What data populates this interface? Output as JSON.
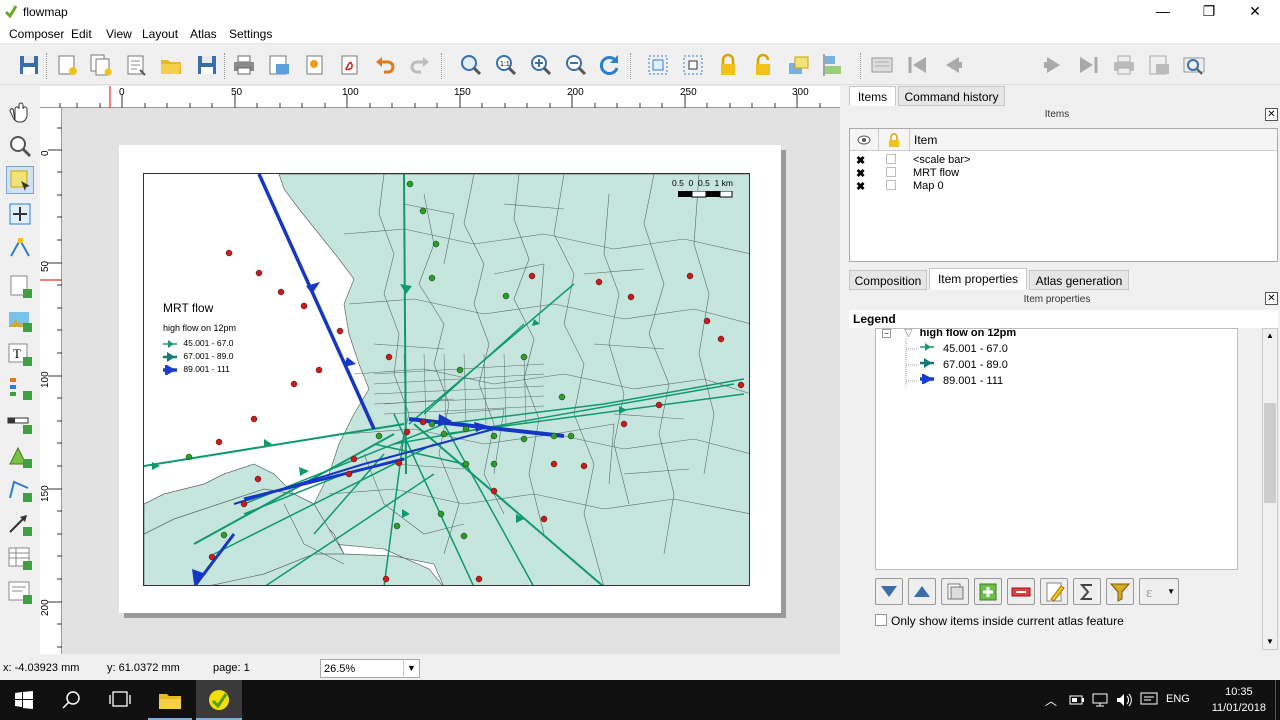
{
  "window": {
    "title": "flowmap",
    "minimize": "—",
    "restore": "❐",
    "close": "✕"
  },
  "menu": [
    "Composer",
    "Edit",
    "View",
    "Layout",
    "Atlas",
    "Settings"
  ],
  "toolbar": {
    "page_value": "1"
  },
  "ruler": {
    "h_ticks": [
      "0",
      "50",
      "100",
      "150",
      "200",
      "250",
      "300"
    ],
    "v_ticks": [
      "0",
      "50",
      "100",
      "150",
      "200"
    ]
  },
  "map": {
    "legend_title": "MRT flow",
    "legend_subtitle": "high flow on 12pm",
    "classes": [
      {
        "label": "45.001 - 67.0",
        "color": "#1a9a6a"
      },
      {
        "label": "67.001 - 89.0",
        "color": "#127a7a"
      },
      {
        "label": "89.001 - 111",
        "color": "#1a3ccc"
      }
    ],
    "scalebar_labels": "0.5  0  0.5  1 km",
    "colors": {
      "land": "#c6e6dd",
      "boundary": "#5a6a66",
      "flow_green": "#0f9a6e",
      "flow_blue": "#1637c4",
      "station_red": "#d01818",
      "station_green": "#2aa02a"
    }
  },
  "status": {
    "x": "x: -4.03923 mm",
    "y": "y: 61.0372 mm",
    "page": "page: 1",
    "zoom": "26.5%"
  },
  "panel": {
    "top_tabs": [
      "Items",
      "Command history"
    ],
    "items_title": "Items",
    "items_col": "Item",
    "items": [
      "<scale bar>",
      "MRT flow",
      "Map 0"
    ],
    "bottom_tabs": [
      "Composition",
      "Item properties",
      "Atlas generation"
    ],
    "props_title": "Item properties",
    "legend_header": "Legend",
    "tree_group": "high flow on 12pm",
    "only_items_label": "Only show items inside current atlas feature"
  },
  "taskbar": {
    "lang": "ENG",
    "time": "10:35",
    "date": "11/01/2018"
  }
}
